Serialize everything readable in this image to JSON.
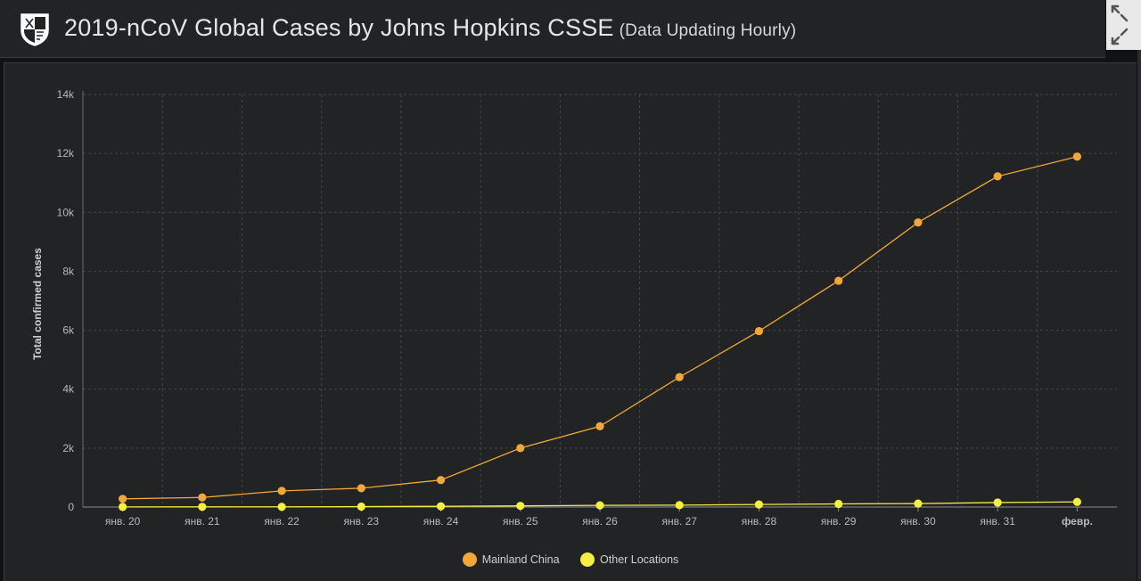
{
  "header": {
    "title": "2019-nCoV Global Cases by Johns Hopkins CSSE",
    "subtitle": "(Data Updating Hourly)",
    "logo_icon": "university-shield-icon"
  },
  "corner_controls": {
    "expand_icon": "expand-arrows-icon",
    "collapse_icon": "collapse-arrows-icon"
  },
  "colors": {
    "background": "#222325",
    "grid": "#45464a",
    "axis_text": "#b9b9b9",
    "mainland_china": "#f1a73a",
    "other_locations": "#f6ee42"
  },
  "chart_data": {
    "type": "line",
    "categories": [
      "янв. 20",
      "янв. 21",
      "янв. 22",
      "янв. 23",
      "янв. 24",
      "янв. 25",
      "янв. 26",
      "янв. 27",
      "янв. 28",
      "янв. 29",
      "янв. 30",
      "янв. 31",
      "февр."
    ],
    "series": [
      {
        "name": "Mainland China",
        "color": "#f1a73a",
        "values": [
          278,
          326,
          547,
          639,
          916,
          2000,
          2740,
          4409,
          5970,
          7678,
          9658,
          11221,
          11891
        ]
      },
      {
        "name": "Other Locations",
        "color": "#f6ee42",
        "values": [
          4,
          6,
          8,
          14,
          25,
          40,
          57,
          64,
          87,
          105,
          118,
          153,
          173
        ]
      }
    ],
    "ylabel": "Total confirmed cases",
    "xlabel": "",
    "ylim": [
      0,
      14000
    ],
    "yticks": [
      0,
      2000,
      4000,
      6000,
      8000,
      10000,
      12000,
      14000
    ],
    "ytick_labels": [
      "0",
      "2k",
      "4k",
      "6k",
      "8k",
      "10k",
      "12k",
      "14k"
    ],
    "grid": true,
    "legend_position": "bottom-center"
  }
}
